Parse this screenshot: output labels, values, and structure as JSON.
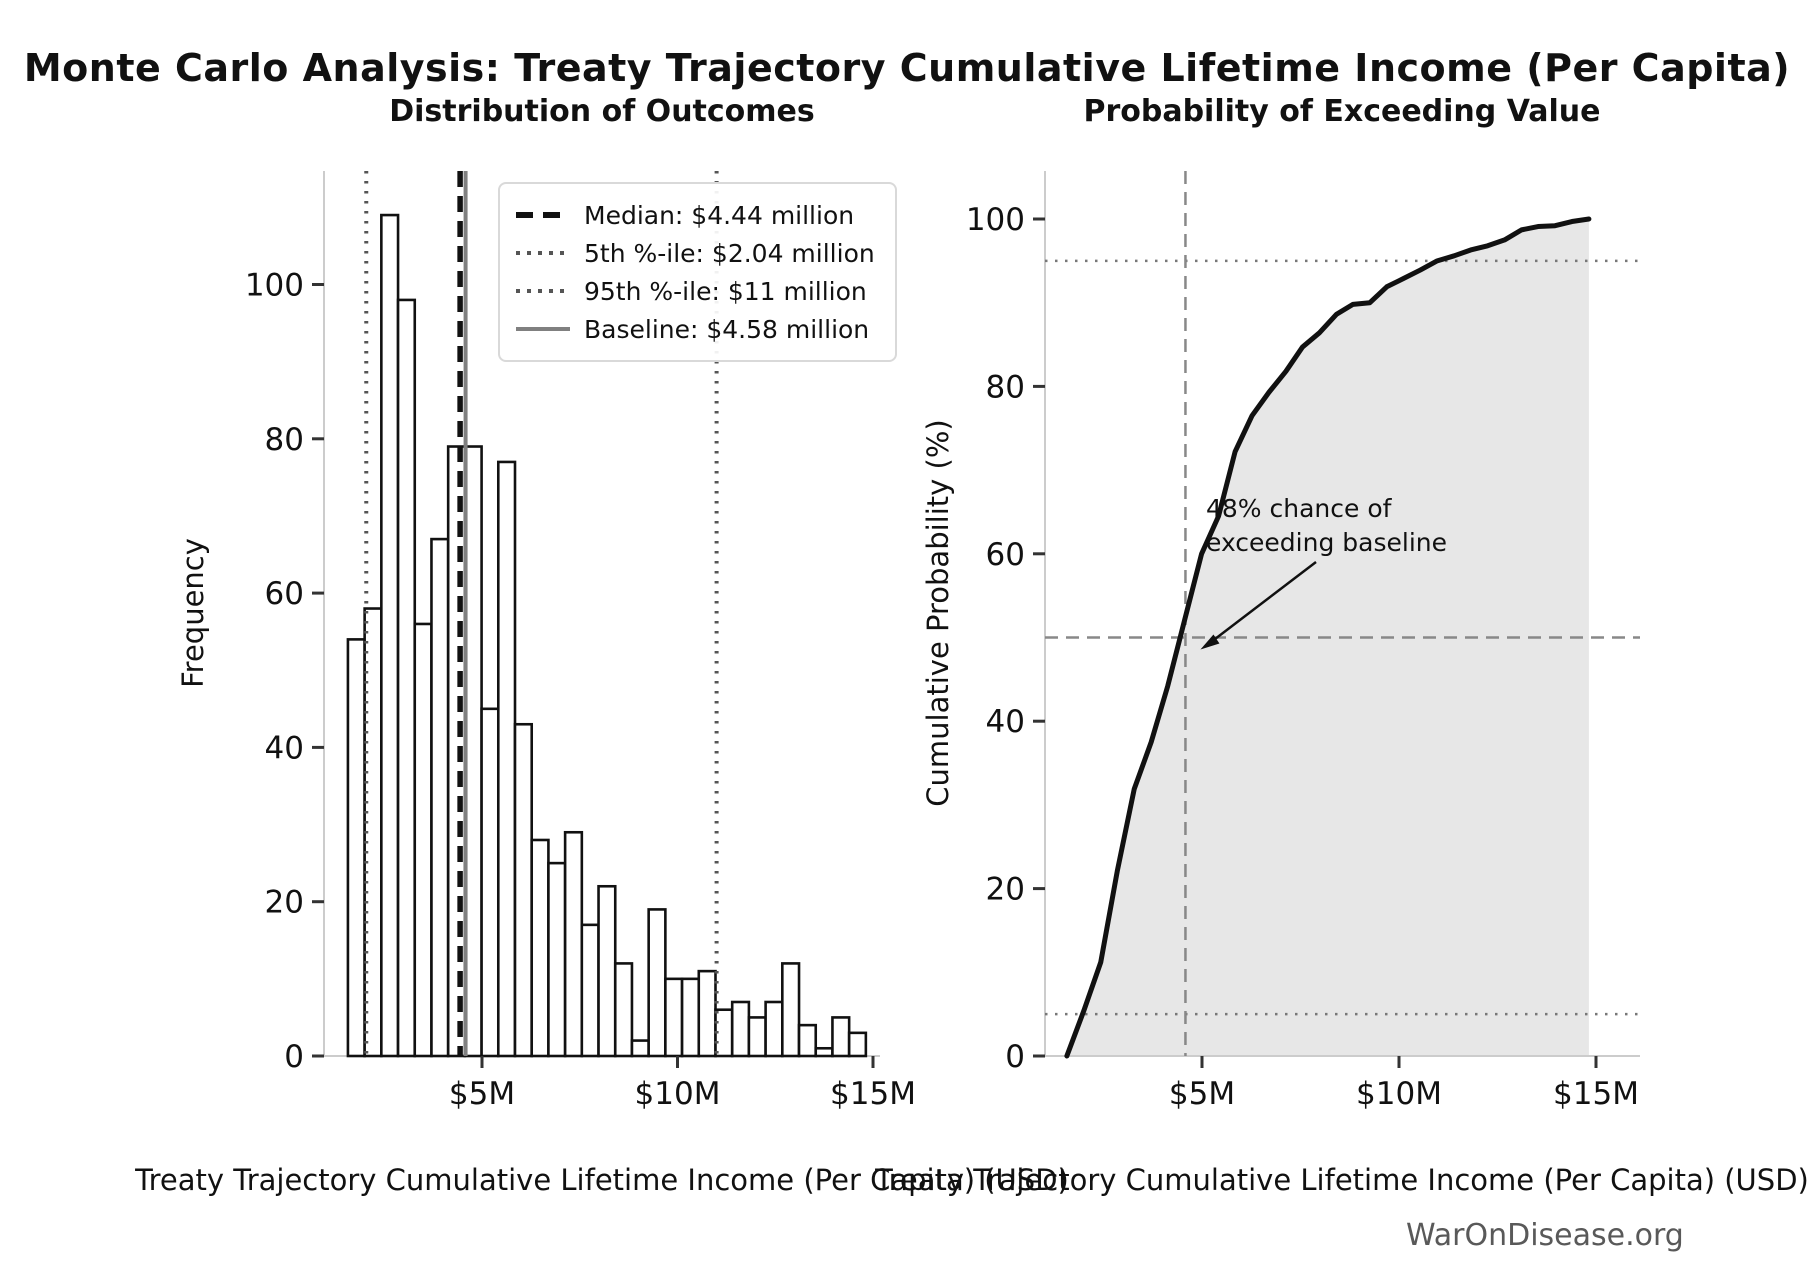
{
  "title": "Monte Carlo Analysis: Treaty Trajectory Cumulative Lifetime Income (Per Capita)",
  "watermark": "WarOnDisease.org",
  "colors": {
    "black": "#111111",
    "gray": "#808080",
    "dark_gray": "#555555",
    "ref_gray": "#888888",
    "spine": "#cccccc",
    "tick": "#333333",
    "fill": "#e7e7e7"
  },
  "chart_data": [
    {
      "type": "bar",
      "title": "Distribution of Outcomes",
      "xlabel": "Treaty Trajectory Cumulative Lifetime Income (Per Capita) (USD)",
      "ylabel": "Frequency",
      "n_simulations": 1000,
      "bin_start_musd": 1.571,
      "bin_width_musd": 0.4273,
      "counts": [
        54,
        58,
        109,
        98,
        56,
        67,
        79,
        79,
        45,
        77,
        43,
        28,
        25,
        29,
        17,
        22,
        12,
        2,
        19,
        10,
        10,
        11,
        6,
        7,
        5,
        7,
        12,
        4,
        1,
        5,
        3
      ],
      "ylim": [
        0,
        114.5
      ],
      "xticks": [
        {
          "value": 5,
          "label": "$5M"
        },
        {
          "value": 10,
          "label": "$10M"
        },
        {
          "value": 15,
          "label": "$15M"
        }
      ],
      "yticks": [
        {
          "value": 0,
          "label": "0"
        },
        {
          "value": 20,
          "label": "20"
        },
        {
          "value": 40,
          "label": "40"
        },
        {
          "value": 60,
          "label": "60"
        },
        {
          "value": 80,
          "label": "80"
        },
        {
          "value": 100,
          "label": "100"
        }
      ],
      "ref_lines": [
        {
          "name": "baseline",
          "value_musd": 4.58,
          "style": "solid",
          "color": "#808080"
        },
        {
          "name": "p5",
          "value_musd": 2.04,
          "style": "dotted",
          "color": "#555555"
        },
        {
          "name": "p95",
          "value_musd": 11.0,
          "style": "dotted",
          "color": "#555555"
        },
        {
          "name": "median",
          "value_musd": 4.44,
          "style": "dashed",
          "color": "#111111"
        }
      ],
      "legend": [
        {
          "sample": "dashed",
          "color": "#111111",
          "label": "Median: $4.44 million"
        },
        {
          "sample": "dotted",
          "color": "#555555",
          "label": "5th %-ile: $2.04 million"
        },
        {
          "sample": "dotted",
          "color": "#555555",
          "label": "95th %-ile: $11 million"
        },
        {
          "sample": "solid",
          "color": "#808080",
          "label": "Baseline: $4.58 million"
        }
      ]
    },
    {
      "type": "line",
      "title": "Probability of Exceeding Value",
      "xlabel": "Treaty Trajectory Cumulative Lifetime Income (Per Capita) (USD)",
      "ylabel": "Cumulative Probability (%)",
      "x_musd": [
        1.57,
        2.0,
        2.43,
        2.85,
        3.28,
        3.71,
        4.13,
        4.56,
        4.99,
        5.42,
        5.84,
        6.27,
        6.7,
        7.13,
        7.55,
        7.98,
        8.41,
        8.83,
        9.26,
        9.69,
        10.12,
        10.54,
        10.97,
        11.4,
        11.82,
        12.25,
        12.68,
        13.11,
        13.53,
        13.96,
        14.39,
        14.82
      ],
      "y_percent": [
        0,
        5.4,
        11.2,
        22.1,
        31.9,
        37.5,
        44.2,
        52.1,
        60.0,
        64.5,
        72.2,
        76.5,
        79.3,
        81.8,
        84.7,
        86.4,
        88.6,
        89.8,
        90.0,
        91.9,
        92.9,
        93.9,
        95.0,
        95.6,
        96.3,
        96.8,
        97.5,
        98.7,
        99.1,
        99.2,
        99.7,
        100.0
      ],
      "ylim": [
        0,
        100
      ],
      "xticks": [
        {
          "value": 5,
          "label": "$5M"
        },
        {
          "value": 10,
          "label": "$10M"
        },
        {
          "value": 15,
          "label": "$15M"
        }
      ],
      "yticks": [
        {
          "value": 0,
          "label": "0"
        },
        {
          "value": 20,
          "label": "20"
        },
        {
          "value": 40,
          "label": "40"
        },
        {
          "value": 60,
          "label": "60"
        },
        {
          "value": 80,
          "label": "80"
        },
        {
          "value": 100,
          "label": "100"
        }
      ],
      "h_dotted_percent": [
        5,
        95
      ],
      "h_dashed_percent": [
        50
      ],
      "v_dashed_musd": [
        4.58
      ],
      "annotation": {
        "text": "48% chance of\nexceeding baseline",
        "points_to_musd": 4.58,
        "points_to_percent": 50
      }
    }
  ]
}
